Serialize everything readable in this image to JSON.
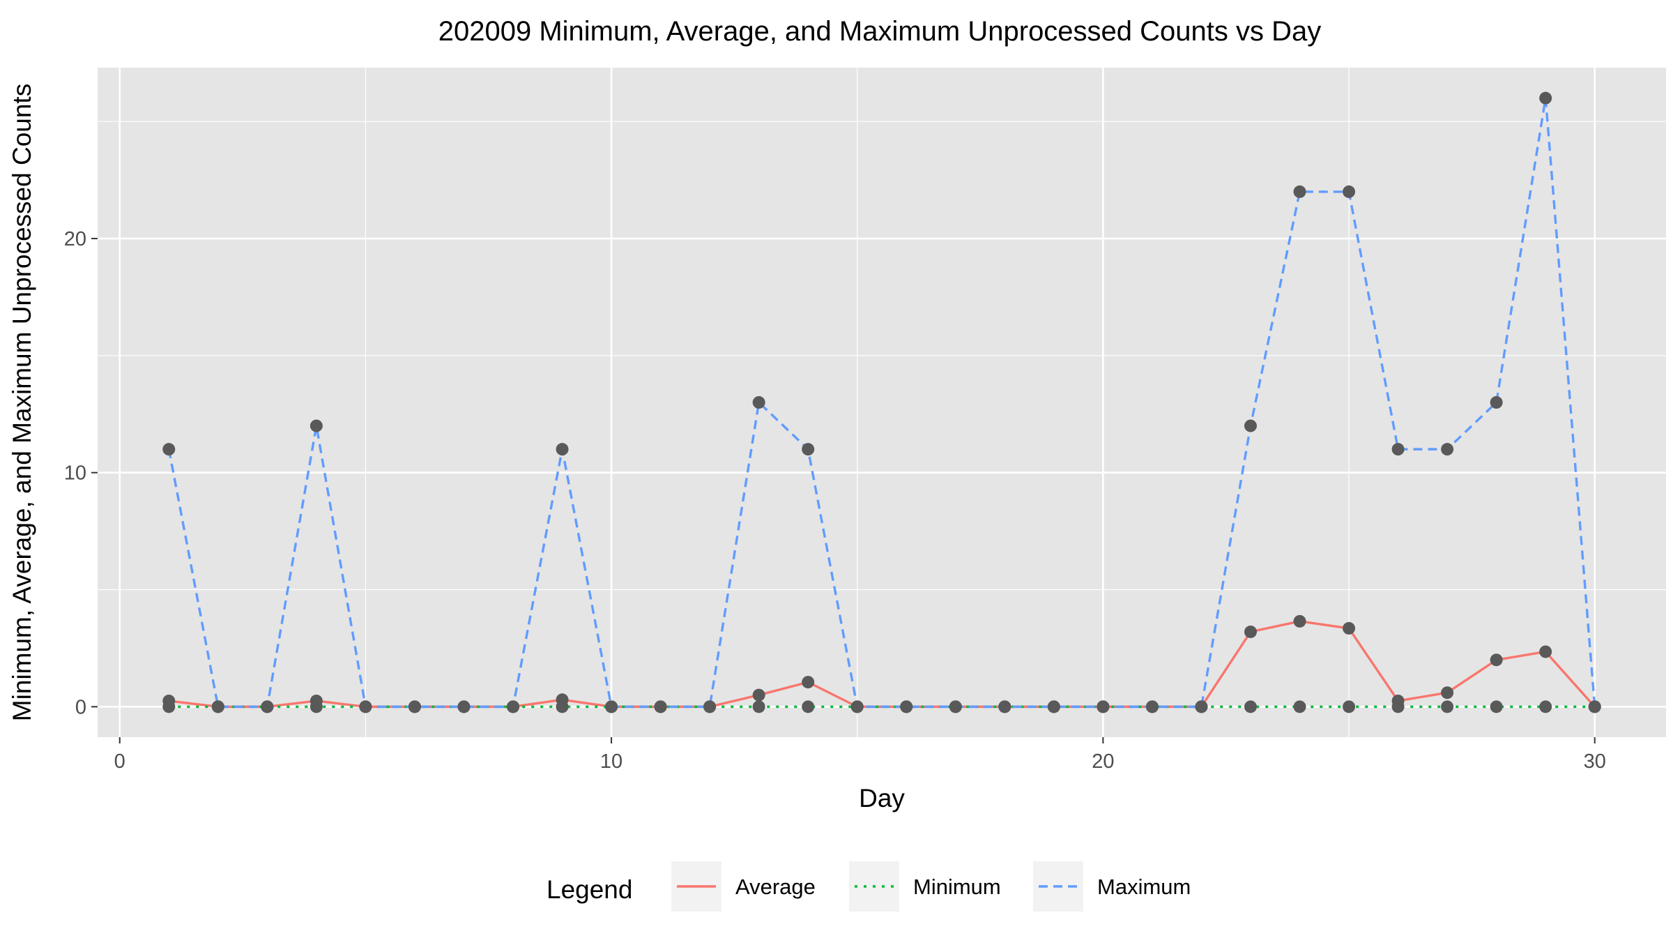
{
  "chart_data": {
    "type": "line",
    "title": "202009 Minimum, Average, and Maximum Unprocessed Counts vs Day",
    "xlabel": "Day",
    "ylabel": "Minimum, Average, and Maximum Unprocessed Counts",
    "xlim": [
      -0.45,
      31.45
    ],
    "ylim": [
      -1.3,
      27.3
    ],
    "x_ticks": [
      0,
      10,
      20,
      30
    ],
    "y_ticks": [
      0,
      10,
      20
    ],
    "grid": true,
    "legend": {
      "title": "Legend",
      "position": "bottom",
      "entries": [
        "Average",
        "Minimum",
        "Maximum"
      ]
    },
    "x": [
      1,
      2,
      3,
      4,
      5,
      6,
      7,
      8,
      9,
      10,
      11,
      12,
      13,
      14,
      15,
      16,
      17,
      18,
      19,
      20,
      21,
      22,
      23,
      24,
      25,
      26,
      27,
      28,
      29,
      30
    ],
    "series": [
      {
        "name": "Average",
        "color": "#f8766d",
        "dash": "solid",
        "values": [
          0.25,
          0,
          0,
          0.25,
          0,
          0,
          0,
          0,
          0.3,
          0,
          0,
          0,
          0.5,
          1.05,
          0,
          0,
          0,
          0,
          0,
          0,
          0,
          0,
          3.2,
          3.65,
          3.35,
          0.25,
          0.6,
          2.0,
          2.35,
          0
        ]
      },
      {
        "name": "Minimum",
        "color": "#00ba38",
        "dash": "dotted",
        "values": [
          0,
          0,
          0,
          0,
          0,
          0,
          0,
          0,
          0,
          0,
          0,
          0,
          0,
          0,
          0,
          0,
          0,
          0,
          0,
          0,
          0,
          0,
          0,
          0,
          0,
          0,
          0,
          0,
          0,
          0
        ]
      },
      {
        "name": "Maximum",
        "color": "#619cff",
        "dash": "dashed",
        "values": [
          11,
          0,
          0,
          12,
          0,
          0,
          0,
          0,
          11,
          0,
          0,
          0,
          13,
          11,
          0,
          0,
          0,
          0,
          0,
          0,
          0,
          0,
          12,
          22,
          22,
          11,
          11,
          13,
          26,
          0
        ]
      }
    ],
    "point_color": "#595959",
    "panel_color": "#e5e5e5"
  }
}
